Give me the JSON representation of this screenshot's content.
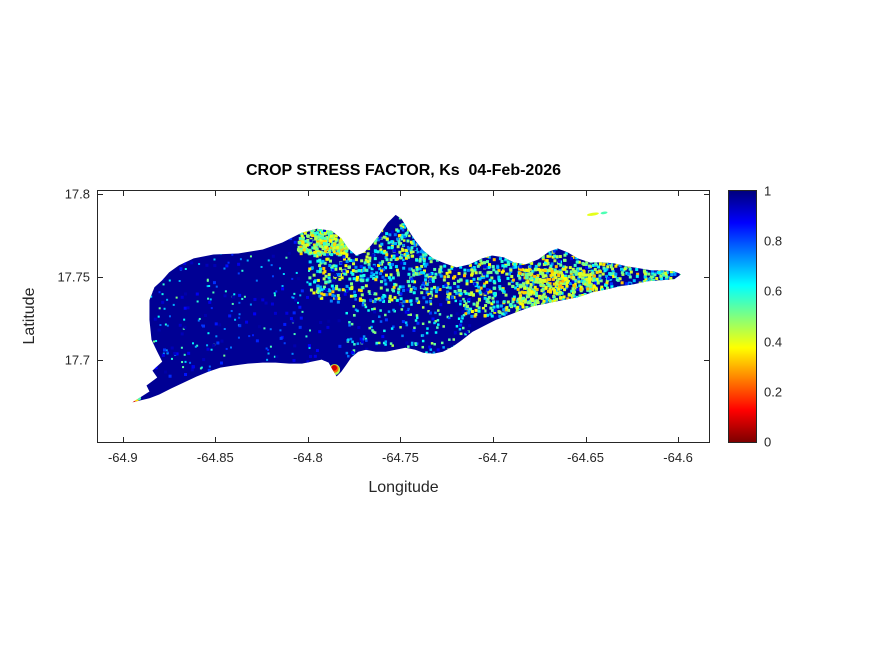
{
  "chart_data": {
    "type": "heatmap",
    "title": "CROP STRESS FACTOR, Ks  04-Feb-2026",
    "xlabel": "Longitude",
    "ylabel": "Latitude",
    "xlim": [
      -64.9134,
      -64.5833
    ],
    "ylim": [
      17.6503,
      17.8018
    ],
    "xticks": [
      -64.9,
      -64.85,
      -64.8,
      -64.75,
      -64.7,
      -64.65,
      -64.6
    ],
    "xtick_labels": [
      "-64.9",
      "-64.85",
      "-64.8",
      "-64.75",
      "-64.7",
      "-64.65",
      "-64.6"
    ],
    "yticks": [
      17.7,
      17.75,
      17.8
    ],
    "ytick_labels": [
      "17.7",
      "17.75",
      "17.8"
    ],
    "grid": false,
    "legend": "none",
    "colormap": "jet-reversed (1 = dark blue, 0 = dark red)",
    "background": "#ffffff",
    "text_color": "#262626",
    "colorbar": {
      "min": 0,
      "max": 1,
      "position": "right",
      "ticks": [
        0,
        0.2,
        0.4,
        0.6,
        0.8,
        1
      ],
      "tick_labels": [
        "0",
        "0.2",
        "0.4",
        "0.6",
        "0.8",
        "1"
      ]
    },
    "base_value": 0.98,
    "island_outline": [
      [
        -64.8947,
        17.6743
      ],
      [
        -64.8856,
        17.6808
      ],
      [
        -64.8872,
        17.6844
      ],
      [
        -64.8814,
        17.6892
      ],
      [
        -64.884,
        17.6934
      ],
      [
        -64.8787,
        17.6988
      ],
      [
        -64.8814,
        17.7048
      ],
      [
        -64.8845,
        17.712
      ],
      [
        -64.8856,
        17.724
      ],
      [
        -64.8856,
        17.7359
      ],
      [
        -64.8829,
        17.7437
      ],
      [
        -64.8787,
        17.7479
      ],
      [
        -64.875,
        17.7527
      ],
      [
        -64.8697,
        17.7569
      ],
      [
        -64.8617,
        17.7611
      ],
      [
        -64.851,
        17.7635
      ],
      [
        -64.8377,
        17.7641
      ],
      [
        -64.8244,
        17.7665
      ],
      [
        -64.8138,
        17.7707
      ],
      [
        -64.8032,
        17.7767
      ],
      [
        -64.7952,
        17.779
      ],
      [
        -64.7872,
        17.7778
      ],
      [
        -64.7819,
        17.7731
      ],
      [
        -64.7782,
        17.7671
      ],
      [
        -64.7739,
        17.7629
      ],
      [
        -64.7697,
        17.7647
      ],
      [
        -64.7659,
        17.7689
      ],
      [
        -64.7617,
        17.7749
      ],
      [
        -64.7569,
        17.7826
      ],
      [
        -64.7526,
        17.7874
      ],
      [
        -64.7494,
        17.785
      ],
      [
        -64.7462,
        17.779
      ],
      [
        -64.742,
        17.7719
      ],
      [
        -64.7377,
        17.7659
      ],
      [
        -64.7324,
        17.7611
      ],
      [
        -64.726,
        17.7581
      ],
      [
        -64.7197,
        17.7557
      ],
      [
        -64.7127,
        17.7575
      ],
      [
        -64.7058,
        17.7611
      ],
      [
        -64.7005,
        17.7629
      ],
      [
        -64.6941,
        17.7617
      ],
      [
        -64.6888,
        17.7587
      ],
      [
        -64.6824,
        17.7575
      ],
      [
        -64.6755,
        17.7605
      ],
      [
        -64.6697,
        17.7653
      ],
      [
        -64.6649,
        17.7671
      ],
      [
        -64.6595,
        17.7647
      ],
      [
        -64.6542,
        17.7611
      ],
      [
        -64.6478,
        17.7587
      ],
      [
        -64.6409,
        17.7587
      ],
      [
        -64.6345,
        17.7581
      ],
      [
        -64.6276,
        17.7563
      ],
      [
        -64.6207,
        17.7551
      ],
      [
        -64.6143,
        17.7539
      ],
      [
        -64.6079,
        17.7539
      ],
      [
        -64.6021,
        17.7533
      ],
      [
        -64.5984,
        17.7515
      ],
      [
        -64.6021,
        17.7485
      ],
      [
        -64.609,
        17.7479
      ],
      [
        -64.6165,
        17.7473
      ],
      [
        -64.6239,
        17.7455
      ],
      [
        -64.6314,
        17.7443
      ],
      [
        -64.6383,
        17.7425
      ],
      [
        -64.6462,
        17.7407
      ],
      [
        -64.6542,
        17.7377
      ],
      [
        -64.6622,
        17.7359
      ],
      [
        -64.6702,
        17.7341
      ],
      [
        -64.6782,
        17.7323
      ],
      [
        -64.6845,
        17.7299
      ],
      [
        -64.6915,
        17.7269
      ],
      [
        -64.6984,
        17.724
      ],
      [
        -64.7048,
        17.7204
      ],
      [
        -64.7111,
        17.7168
      ],
      [
        -64.7165,
        17.712
      ],
      [
        -64.7218,
        17.7078
      ],
      [
        -64.7271,
        17.7048
      ],
      [
        -64.7324,
        17.7036
      ],
      [
        -64.7377,
        17.7042
      ],
      [
        -64.742,
        17.706
      ],
      [
        -64.7473,
        17.7072
      ],
      [
        -64.7526,
        17.706
      ],
      [
        -64.7579,
        17.7048
      ],
      [
        -64.7633,
        17.7048
      ],
      [
        -64.7686,
        17.706
      ],
      [
        -64.7728,
        17.7048
      ],
      [
        -64.7766,
        17.7012
      ],
      [
        -64.7792,
        17.697
      ],
      [
        -64.7819,
        17.6928
      ],
      [
        -64.7845,
        17.6898
      ],
      [
        -64.7867,
        17.694
      ],
      [
        -64.7888,
        17.6982
      ],
      [
        -64.7925,
        17.7
      ],
      [
        -64.7978,
        17.6988
      ],
      [
        -64.8032,
        17.6976
      ],
      [
        -64.8101,
        17.6976
      ],
      [
        -64.8175,
        17.6982
      ],
      [
        -64.8244,
        17.6982
      ],
      [
        -64.8324,
        17.6976
      ],
      [
        -64.8404,
        17.6964
      ],
      [
        -64.8473,
        17.6952
      ],
      [
        -64.8537,
        17.6928
      ],
      [
        -64.8601,
        17.6898
      ],
      [
        -64.867,
        17.6862
      ],
      [
        -64.8739,
        17.6826
      ],
      [
        -64.8803,
        17.679
      ],
      [
        -64.8856,
        17.6767
      ]
    ],
    "speckle_regions": [
      {
        "lon": [
          -64.799,
          -64.717
        ],
        "lat": [
          17.7345,
          17.779
        ],
        "n": 650,
        "v": [
          0.32,
          0.78
        ],
        "s": 3
      },
      {
        "lon": [
          -64.7154,
          -64.6169
        ],
        "lat": [
          17.7261,
          17.7681
        ],
        "n": 950,
        "v": [
          0.3,
          0.75
        ],
        "s": 3
      },
      {
        "lon": [
          -64.6185,
          -64.5921
        ],
        "lat": [
          17.7441,
          17.7609
        ],
        "n": 170,
        "v": [
          0.35,
          0.8
        ],
        "s": 3
      },
      {
        "lon": [
          -64.8849,
          -64.7988
        ],
        "lat": [
          17.6924,
          17.7669
        ],
        "n": 140,
        "v": [
          0.5,
          0.85
        ],
        "s": 2
      },
      {
        "lon": [
          -64.78,
          -64.7127
        ],
        "lat": [
          17.702,
          17.7369
        ],
        "n": 160,
        "v": [
          0.45,
          0.8
        ],
        "s": 2.5
      },
      {
        "lon": [
          -64.8052,
          -64.7783
        ],
        "lat": [
          17.7633,
          17.779
        ],
        "n": 260,
        "v": [
          0.3,
          0.6
        ],
        "s": 3
      },
      {
        "lon": [
          -64.895,
          -64.592
        ],
        "lat": [
          17.67,
          17.79
        ],
        "n": 500,
        "v": [
          0.82,
          0.97
        ],
        "s": 3
      },
      {
        "lon": [
          -64.6858,
          -64.6428
        ],
        "lat": [
          17.7297,
          17.7549
        ],
        "n": 300,
        "v": [
          0.3,
          0.55
        ],
        "s": 3
      },
      {
        "lon": [
          -64.7503,
          -64.7234
        ],
        "lat": [
          17.7597,
          17.7868
        ],
        "n": 140,
        "v": [
          0.4,
          0.8
        ],
        "s": 2.5
      }
    ],
    "low_value_spots": [
      {
        "lon": -64.8951,
        "lat": 17.674,
        "value": 0.05,
        "r": 3
      },
      {
        "lon": -64.8938,
        "lat": 17.6752,
        "value": 0.15,
        "r": 2.6
      },
      {
        "lon": -64.8925,
        "lat": 17.676,
        "value": 0.35,
        "r": 2.2
      },
      {
        "lon": -64.8912,
        "lat": 17.6768,
        "value": 0.55,
        "r": 2
      },
      {
        "lon": -64.7856,
        "lat": 17.694,
        "value": 0.45,
        "r": 5.5
      },
      {
        "lon": -64.7856,
        "lat": 17.6945,
        "value": 0.22,
        "r": 4
      },
      {
        "lon": -64.7858,
        "lat": 17.695,
        "value": 0.08,
        "r": 2.8
      },
      {
        "lon": -64.6744,
        "lat": 17.7228,
        "value": 0.3,
        "r": 4
      },
      {
        "lon": -64.6744,
        "lat": 17.7225,
        "value": 0.05,
        "r": 2.6
      }
    ],
    "islets": [
      {
        "lon": -64.646,
        "lat": 17.7878,
        "w": 12,
        "h": 3,
        "value": 0.4
      },
      {
        "lon": -64.64,
        "lat": 17.7886,
        "w": 7,
        "h": 2.5,
        "value": 0.55
      }
    ]
  }
}
